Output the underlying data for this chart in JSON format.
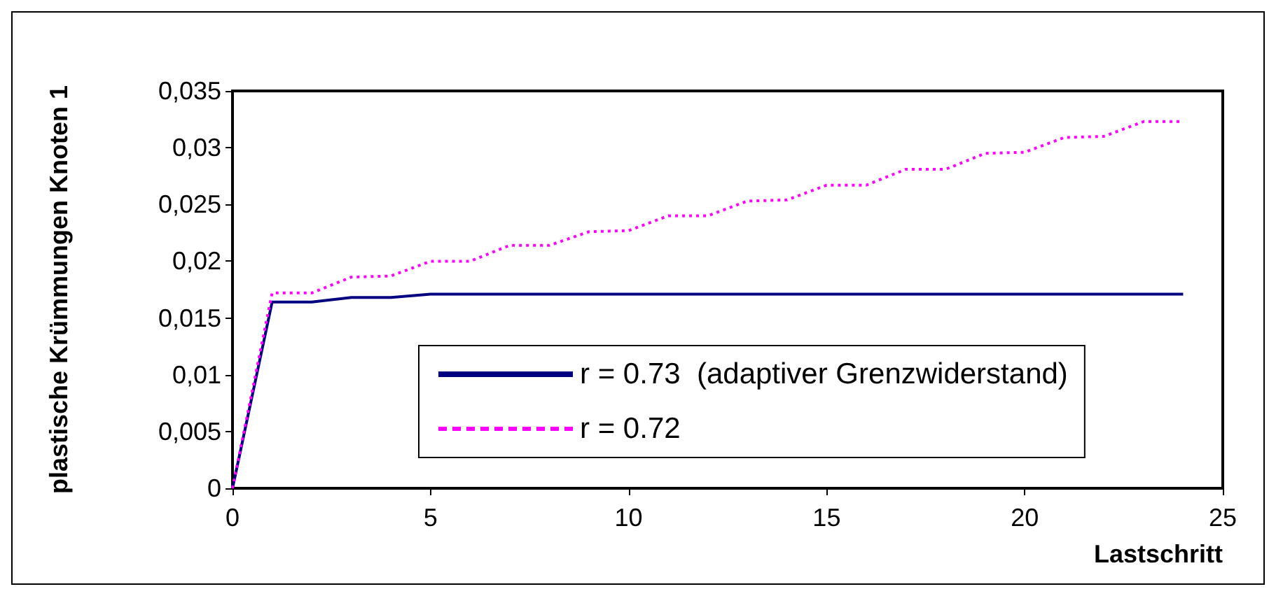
{
  "chart_data": {
    "type": "line",
    "xlabel": "Lastschritt",
    "ylabel": "plastische Krümmungen Knoten 1",
    "x": [
      0,
      1,
      2,
      3,
      4,
      5,
      6,
      7,
      8,
      9,
      10,
      11,
      12,
      13,
      14,
      15,
      16,
      17,
      18,
      19,
      20,
      21,
      22,
      23,
      24
    ],
    "series": [
      {
        "name": "r = 0.73  (adaptiver Grenzwiderstand)",
        "color": "#000080",
        "line_style": "solid",
        "values": [
          0,
          0.0164,
          0.0164,
          0.0168,
          0.0168,
          0.0171,
          0.0171,
          0.0171,
          0.0171,
          0.0171,
          0.0171,
          0.0171,
          0.0171,
          0.0171,
          0.0171,
          0.0171,
          0.0171,
          0.0171,
          0.0171,
          0.0171,
          0.0171,
          0.0171,
          0.0171,
          0.0171,
          0.0171
        ]
      },
      {
        "name": "r = 0.72",
        "color": "#ff00ff",
        "line_style": "dotted",
        "values": [
          0,
          0.0172,
          0.0172,
          0.0186,
          0.0187,
          0.02,
          0.02,
          0.0214,
          0.0214,
          0.0226,
          0.0227,
          0.024,
          0.024,
          0.0253,
          0.0254,
          0.0267,
          0.0267,
          0.0281,
          0.0281,
          0.0295,
          0.0296,
          0.0309,
          0.031,
          0.0323,
          0.0323
        ]
      }
    ],
    "xlim": [
      0,
      25
    ],
    "xticks": [
      0,
      5,
      10,
      15,
      20,
      25
    ],
    "ylim": [
      0,
      0.035
    ],
    "yticks": [
      0,
      {
        "value": 0.005,
        "label": "0,005"
      },
      {
        "value": 0.01,
        "label": "0,01"
      },
      {
        "value": 0.015,
        "label": "0,015"
      },
      {
        "value": 0.02,
        "label": "0,02"
      },
      {
        "value": 0.025,
        "label": "0,025"
      },
      {
        "value": 0.03,
        "label": "0,03"
      },
      {
        "value": 0.035,
        "label": "0,035"
      }
    ],
    "grid": false,
    "legend": "bottom",
    "marker": "none"
  }
}
